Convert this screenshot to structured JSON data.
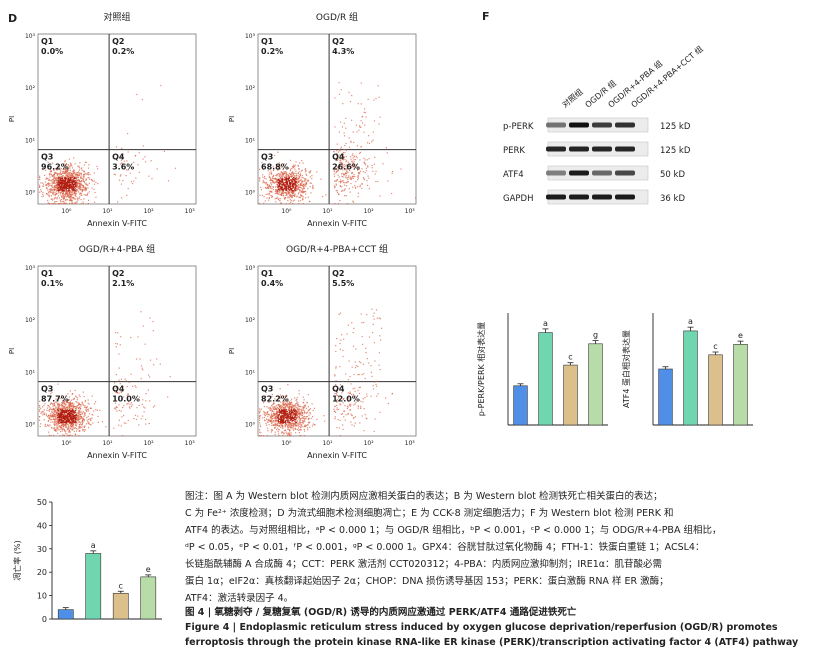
{
  "panels": {
    "D": {
      "letter": "D",
      "flow_plots": [
        {
          "title": "对照组",
          "q1": "Q1",
          "q1_val": "0.0%",
          "q2": "Q2",
          "q2_val": "0.2%",
          "q3": "Q3",
          "q3_val": "96.2%",
          "q4": "Q4",
          "q4_val": "3.6%",
          "xlabel": "Annexin V-FITC",
          "ylabel": "PI"
        },
        {
          "title": "OGD/R 组",
          "q1": "Q1",
          "q1_val": "0.2%",
          "q2": "Q2",
          "q2_val": "4.3%",
          "q3": "Q3",
          "q3_val": "68.8%",
          "q4": "Q4",
          "q4_val": "26.6%",
          "xlabel": "Annexin V-FITC",
          "ylabel": "PI"
        },
        {
          "title": "OGD/R+4-PBA 组",
          "q1": "Q1",
          "q1_val": "0.1%",
          "q2": "Q2",
          "q2_val": "2.1%",
          "q3": "Q3",
          "q3_val": "87.7%",
          "q4": "Q4",
          "q4_val": "10.0%",
          "xlabel": "Annexin V-FITC",
          "ylabel": "PI"
        },
        {
          "title": "OGD/R+4-PBA+CCT 组",
          "q1": "Q1",
          "q1_val": "0.4%",
          "q2": "Q2",
          "q2_val": "5.5%",
          "q3": "Q3",
          "q3_val": "82.2%",
          "q4": "Q4",
          "q4_val": "12.0%",
          "xlabel": "Annexin V-FITC",
          "ylabel": "PI"
        }
      ],
      "y_ticks": [
        "10³",
        "10²",
        "10¹",
        "10⁰"
      ],
      "x_ticks": [
        "10⁰",
        "10¹",
        "10²",
        "10³"
      ]
    },
    "F": {
      "letter": "F",
      "lanes": [
        "对照组",
        "OGD/R 组",
        "OGD/R+4-PBA 组",
        "OGD/R+4-PBA+CCT 组"
      ],
      "blots": [
        {
          "protein": "p-PERK",
          "size": "125 kD"
        },
        {
          "protein": "PERK",
          "size": "125 kD"
        },
        {
          "protein": "ATF4",
          "size": "50 kD"
        },
        {
          "protein": "GAPDH",
          "size": "36 kD"
        }
      ]
    }
  },
  "bar_charts": {
    "colors": [
      "#4f8fe8",
      "#6fd6b0",
      "#dcc08c",
      "#b8dca8"
    ],
    "perk": {
      "ylabel": "p-PERK/PERK 相对表达量",
      "letters": [
        "",
        "a",
        "c",
        "g"
      ]
    },
    "atf4": {
      "ylabel": "ATF4 蛋白相对表达量",
      "letters": [
        "",
        "a",
        "c",
        "e"
      ]
    },
    "death": {
      "ylabel": "凋亡率 (%)",
      "ticks": [
        "50",
        "40",
        "30",
        "20",
        "10",
        "0"
      ],
      "letters": [
        "",
        "a",
        "c",
        "e"
      ]
    }
  },
  "chart_data": [
    {
      "type": "bar",
      "categories": [
        "对照组",
        "OGD/R 组",
        "OGD/R+4-PBA 组",
        "OGD/R+4-PBA+CCT 组"
      ],
      "values": [
        0.7,
        1.65,
        1.07,
        1.45
      ],
      "ylabel": "p-PERK/PERK 相对表达量",
      "ylim": [
        0,
        2.0
      ]
    },
    {
      "type": "bar",
      "categories": [
        "对照组",
        "OGD/R 组",
        "OGD/R+4-PBA 组",
        "OGD/R+4-PBA+CCT 组"
      ],
      "values": [
        0.75,
        1.26,
        0.94,
        1.08
      ],
      "ylabel": "ATF4 蛋白相对表达量",
      "ylim": [
        0,
        1.5
      ]
    },
    {
      "type": "bar",
      "categories": [
        "对照组",
        "OGD/R 组",
        "OGD/R+4-PBA 组",
        "OGD/R+4-PBA+CCT 组"
      ],
      "values": [
        4,
        28,
        11,
        18
      ],
      "ylabel": "凋亡率 (%)",
      "ylim": [
        0,
        50
      ]
    }
  ],
  "caption": {
    "line1": "图注：图 A 为 Western blot 检测内质网应激相关蛋白的表达；B 为 Western blot 检测铁死亡相关蛋白的表达；",
    "line2": "C 为 Fe²⁺ 浓度检测；D 为流式细胞术检测细胞凋亡；E 为 CCK-8 测定细胞活力；F 为 Western blot 检测 PERK 和",
    "line3": "ATF4 的表达。与对照组相比，ᵃP < 0.000 1；与 OGD/R 组相比，ᵇP < 0.001，ᶜP < 0.000 1；与 ODG/R+4-PBA 组相比，",
    "line4": "ᵈP < 0.05，ᵉP < 0.01，ᶠP < 0.001，ᵍP < 0.000 1。GPX4：谷胱甘肽过氧化物酶 4；FTH-1：铁蛋白重链 1；ACSL4：",
    "line5": "长链脂酰辅酶 A 合成酶 4；CCT：PERK 激活剂 CCT020312；4-PBA：内质网应激抑制剂；IRE1α：肌苷酸必需",
    "line6": "蛋白 1α；eIF2α：真核翻译起始因子 2α；CHOP：DNA 损伤诱导基因 153；PERK：蛋白激酶 RNA 样 ER 激酶；",
    "line7": "ATF4：激活转录因子 4。",
    "fig_cn": "图 4 | 氧糖剥夺 / 复糖复氧 (OGD/R) 诱导的内质网应激通过 PERK/ATF4 通路促进铁死亡",
    "fig_en1": "Figure 4  |  Endoplasmic reticulum stress induced by oxygen glucose deprivation/reperfusion (OGD/R) promotes",
    "fig_en2": "ferroptosis through the protein kinase RNA-like ER kinase (PERK)/transcription activating factor 4 (ATF4) pathway"
  }
}
